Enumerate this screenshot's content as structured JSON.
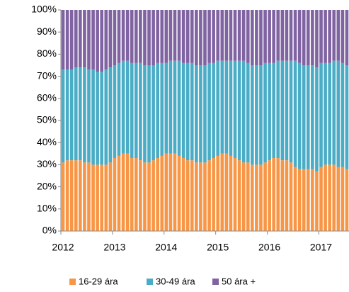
{
  "chart_data": {
    "type": "stacked_bar",
    "categories": [
      "2012",
      null,
      null,
      null,
      null,
      null,
      null,
      null,
      null,
      null,
      null,
      null,
      "2013",
      null,
      null,
      null,
      null,
      null,
      null,
      null,
      null,
      null,
      null,
      null,
      "2014",
      null,
      null,
      null,
      null,
      null,
      null,
      null,
      null,
      null,
      null,
      null,
      "2015",
      null,
      null,
      null,
      null,
      null,
      null,
      null,
      null,
      null,
      null,
      null,
      "2016",
      null,
      null,
      null,
      null,
      null,
      null,
      null,
      null,
      null,
      null,
      null,
      "2017",
      null,
      null,
      null,
      null,
      null,
      null
    ],
    "series": [
      {
        "name": "16-29 ára",
        "color": "#f79646",
        "values": [
          31,
          32,
          32,
          32,
          32,
          31,
          31,
          30,
          30,
          30,
          30,
          31,
          33,
          34,
          35,
          35,
          33,
          33,
          32,
          31,
          31,
          32,
          33,
          34,
          35,
          35,
          35,
          34,
          33,
          32,
          32,
          31,
          31,
          31,
          32,
          33,
          34,
          35,
          35,
          34,
          33,
          32,
          31,
          31,
          30,
          30,
          30,
          31,
          32,
          33,
          33,
          32,
          32,
          31,
          29,
          28,
          28,
          28,
          28,
          27,
          29,
          30,
          30,
          30,
          29,
          29,
          28
        ]
      },
      {
        "name": "30-49 ára",
        "color": "#4bacc6",
        "values": [
          42,
          41,
          41,
          42,
          42,
          43,
          42,
          43,
          42,
          42,
          43,
          43,
          42,
          42,
          42,
          42,
          43,
          43,
          44,
          44,
          44,
          43,
          43,
          42,
          41,
          42,
          42,
          43,
          43,
          44,
          44,
          44,
          44,
          44,
          44,
          43,
          43,
          42,
          42,
          43,
          44,
          45,
          46,
          45,
          45,
          45,
          45,
          45,
          44,
          43,
          44,
          45,
          45,
          46,
          48,
          48,
          47,
          47,
          47,
          47,
          47,
          46,
          46,
          47,
          48,
          47,
          47
        ]
      },
      {
        "name": "50 ára +",
        "color": "#8064a2",
        "values": [
          27,
          27,
          27,
          26,
          26,
          26,
          27,
          27,
          28,
          28,
          27,
          26,
          25,
          24,
          23,
          23,
          24,
          24,
          24,
          25,
          25,
          25,
          24,
          24,
          24,
          23,
          23,
          23,
          24,
          24,
          24,
          25,
          25,
          25,
          24,
          24,
          23,
          23,
          23,
          23,
          23,
          23,
          23,
          24,
          25,
          25,
          25,
          24,
          24,
          24,
          23,
          23,
          23,
          23,
          23,
          24,
          25,
          25,
          25,
          26,
          24,
          24,
          24,
          23,
          23,
          24,
          25
        ]
      }
    ],
    "ylim": [
      0,
      100
    ],
    "yticks": [
      {
        "value": 0,
        "label": "0%"
      },
      {
        "value": 10,
        "label": "10%"
      },
      {
        "value": 20,
        "label": "20%"
      },
      {
        "value": 30,
        "label": "30%"
      },
      {
        "value": 40,
        "label": "40%"
      },
      {
        "value": 50,
        "label": "50%"
      },
      {
        "value": 60,
        "label": "60%"
      },
      {
        "value": 70,
        "label": "70%"
      },
      {
        "value": 80,
        "label": "80%"
      },
      {
        "value": 90,
        "label": "90%"
      },
      {
        "value": 100,
        "label": "100%"
      }
    ],
    "legend": "bottom"
  }
}
